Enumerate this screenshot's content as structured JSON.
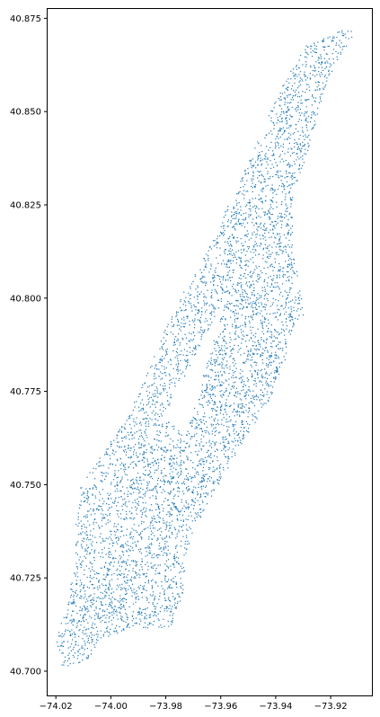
{
  "chart_data": {
    "type": "scatter",
    "title": "",
    "xlabel": "",
    "ylabel": "",
    "xlim": [
      -74.023,
      -73.905
    ],
    "ylim": [
      40.6935,
      40.8775
    ],
    "x_ticks": [
      -74.02,
      -74.0,
      -73.98,
      -73.96,
      -73.94,
      -73.92
    ],
    "x_tick_labels": [
      "−74.02",
      "−74.00",
      "−73.98",
      "−73.96",
      "−73.94",
      "−73.92"
    ],
    "y_ticks": [
      40.7,
      40.725,
      40.75,
      40.775,
      40.8,
      40.825,
      40.85,
      40.875
    ],
    "y_tick_labels": [
      "40.700",
      "40.725",
      "40.750",
      "40.775",
      "40.800",
      "40.825",
      "40.850",
      "40.875"
    ],
    "grid": false,
    "series": [
      {
        "color": "#1f77b4",
        "marker": "dot",
        "region_outline": [
          [
            -74.018,
            40.701
          ],
          [
            -74.009,
            40.703
          ],
          [
            -74.004,
            40.708
          ],
          [
            -73.992,
            40.712
          ],
          [
            -73.979,
            40.711
          ],
          [
            -73.974,
            40.72
          ],
          [
            -73.973,
            40.73
          ],
          [
            -73.971,
            40.736
          ],
          [
            -73.965,
            40.745
          ],
          [
            -73.957,
            40.755
          ],
          [
            -73.95,
            40.764
          ],
          [
            -73.943,
            40.772
          ],
          [
            -73.937,
            40.782
          ],
          [
            -73.935,
            40.79
          ],
          [
            -73.93,
            40.795
          ],
          [
            -73.931,
            40.802
          ],
          [
            -73.934,
            40.813
          ],
          [
            -73.934,
            40.828
          ],
          [
            -73.929,
            40.838
          ],
          [
            -73.926,
            40.846
          ],
          [
            -73.922,
            40.857
          ],
          [
            -73.916,
            40.866
          ],
          [
            -73.91,
            40.872
          ],
          [
            -73.917,
            40.872
          ],
          [
            -73.929,
            40.868
          ],
          [
            -73.937,
            40.858
          ],
          [
            -73.946,
            40.844
          ],
          [
            -73.953,
            40.832
          ],
          [
            -73.96,
            40.821
          ],
          [
            -73.967,
            40.81
          ],
          [
            -73.975,
            40.8
          ],
          [
            -73.982,
            40.789
          ],
          [
            -73.988,
            40.778
          ],
          [
            -73.995,
            40.767
          ],
          [
            -74.005,
            40.757
          ],
          [
            -74.011,
            40.75
          ],
          [
            -74.013,
            40.74
          ],
          [
            -74.013,
            40.73
          ],
          [
            -74.016,
            40.718
          ],
          [
            -74.02,
            40.709
          ],
          [
            -74.018,
            40.701
          ]
        ],
        "park_outline": [
          [
            -73.981,
            40.768
          ],
          [
            -73.973,
            40.764
          ],
          [
            -73.958,
            40.8
          ],
          [
            -73.949,
            40.797
          ],
          [
            -73.959,
            40.8
          ],
          [
            -73.981,
            40.768
          ]
        ]
      }
    ]
  }
}
